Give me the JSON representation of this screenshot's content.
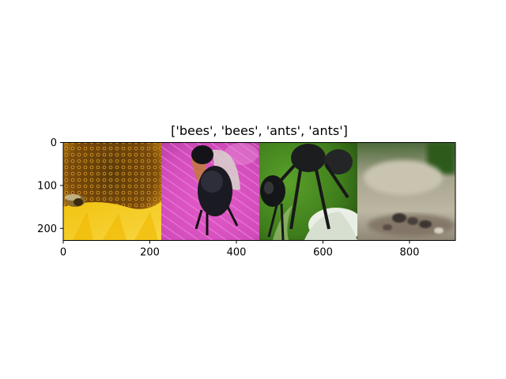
{
  "figure": {
    "title": "['bees', 'bees', 'ants', 'ants']"
  },
  "axes": {
    "x_ticks": [
      {
        "value": 0,
        "label": "0"
      },
      {
        "value": 200,
        "label": "200"
      },
      {
        "value": 400,
        "label": "400"
      },
      {
        "value": 600,
        "label": "600"
      },
      {
        "value": 800,
        "label": "800"
      }
    ],
    "y_ticks": [
      {
        "value": 0,
        "label": "0"
      },
      {
        "value": 100,
        "label": "100"
      },
      {
        "value": 200,
        "label": "200"
      }
    ],
    "xlim": [
      0,
      906
    ],
    "ylim": [
      228,
      0
    ]
  },
  "image_grid": {
    "tiles": [
      {
        "name": "sunflower-bee-photo",
        "subject": "bees",
        "x_range": [
          0,
          226
        ]
      },
      {
        "name": "bumblebee-thistle-photo",
        "subject": "bees",
        "x_range": [
          226,
          452
        ]
      },
      {
        "name": "black-ant-photo",
        "subject": "ants",
        "x_range": [
          452,
          678
        ]
      },
      {
        "name": "ant-ground-photo",
        "subject": "ants",
        "x_range": [
          678,
          906
        ]
      }
    ]
  }
}
